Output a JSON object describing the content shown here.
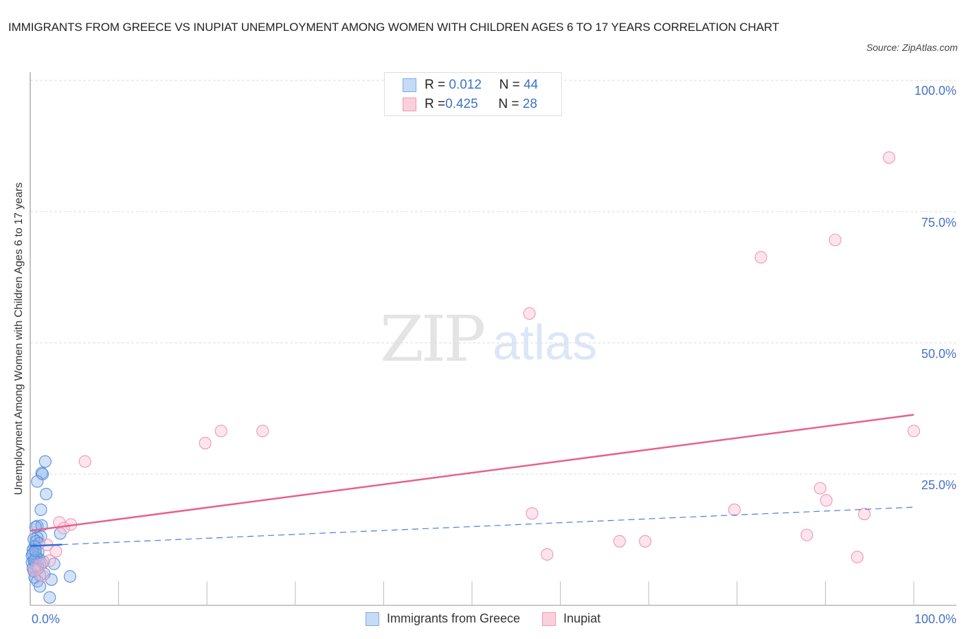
{
  "header": {
    "title": "IMMIGRANTS FROM GREECE VS INUPIAT UNEMPLOYMENT AMONG WOMEN WITH CHILDREN AGES 6 TO 17 YEARS CORRELATION CHART",
    "source": "Source: ZipAtlas.com"
  },
  "watermark": {
    "zip": "ZIP",
    "atlas": "atlas"
  },
  "legend_top": {
    "rows": [
      {
        "r_label": "R = ",
        "r_value": "0.012",
        "n_label": "N = ",
        "n_value": "44",
        "color": "#a8c8f0"
      },
      {
        "r_label": "R = ",
        "r_value": "0.425",
        "n_label": "N = ",
        "n_value": "28",
        "color": "#f8bcd0"
      }
    ]
  },
  "axes": {
    "ylabel": "Unemployment Among Women with Children Ages 6 to 17 years",
    "yticks": [
      "100.0%",
      "75.0%",
      "50.0%",
      "25.0%"
    ],
    "xticks": {
      "left": "0.0%",
      "right": "100.0%"
    }
  },
  "bottom_legend": {
    "items": [
      {
        "label": "Immigrants from Greece",
        "color": "#a8c8f0"
      },
      {
        "label": "Inupiat",
        "color": "#f8bcd0"
      }
    ]
  },
  "chart_data": {
    "type": "scatter",
    "title": "Immigrants from Greece vs Inupiat Unemployment Among Women with Children Ages 6 to 17 years Correlation Chart",
    "xlabel": "",
    "ylabel": "Unemployment Among Women with Children Ages 6 to 17 years",
    "xlim": [
      0,
      100
    ],
    "ylim": [
      0,
      100
    ],
    "x_tick_labels": [
      "0.0%",
      "100.0%"
    ],
    "y_tick_labels": [
      "25.0%",
      "50.0%",
      "75.0%",
      "100.0%"
    ],
    "grid": "horizontal dashed",
    "legend_position": "top-center and bottom",
    "series": [
      {
        "name": "Immigrants from Greece",
        "color": "#6fa0e0",
        "R": 0.012,
        "N": 44,
        "trend": {
          "x0": 0,
          "y0": 11.3,
          "x1": 100,
          "y1": 18.7,
          "style": "solid to ~4%, dashed after"
        },
        "points": [
          [
            1.7,
            27.4
          ],
          [
            1.3,
            25.2
          ],
          [
            1.4,
            25.0
          ],
          [
            0.8,
            23.6
          ],
          [
            1.8,
            21.2
          ],
          [
            1.2,
            18.2
          ],
          [
            0.8,
            15.1
          ],
          [
            1.3,
            15.2
          ],
          [
            0.6,
            14.9
          ],
          [
            3.4,
            13.7
          ],
          [
            1.2,
            13.1
          ],
          [
            0.8,
            12.9
          ],
          [
            0.4,
            12.6
          ],
          [
            0.7,
            12.2
          ],
          [
            1.0,
            11.8
          ],
          [
            0.5,
            11.2
          ],
          [
            0.3,
            10.6
          ],
          [
            0.9,
            10.2
          ],
          [
            0.6,
            9.8
          ],
          [
            0.2,
            9.5
          ],
          [
            0.7,
            9.1
          ],
          [
            1.0,
            8.8
          ],
          [
            0.4,
            8.5
          ],
          [
            0.2,
            8.2
          ],
          [
            1.3,
            8.0
          ],
          [
            2.7,
            7.9
          ],
          [
            0.6,
            7.7
          ],
          [
            0.9,
            7.4
          ],
          [
            0.3,
            7.1
          ],
          [
            0.7,
            6.8
          ],
          [
            0.4,
            6.5
          ],
          [
            1.6,
            6.0
          ],
          [
            1.1,
            5.7
          ],
          [
            0.5,
            5.3
          ],
          [
            4.5,
            5.5
          ],
          [
            2.4,
            4.9
          ],
          [
            0.8,
            4.6
          ],
          [
            1.1,
            3.6
          ],
          [
            2.2,
            1.5
          ],
          [
            0.3,
            9.9
          ],
          [
            0.5,
            8.6
          ],
          [
            0.9,
            7.0
          ],
          [
            0.6,
            10.4
          ],
          [
            1.5,
            8.3
          ]
        ]
      },
      {
        "name": "Inupiat",
        "color": "#f4a0bc",
        "R": 0.425,
        "N": 28,
        "trend": {
          "x0": 0,
          "y0": 14.2,
          "x1": 100,
          "y1": 36.3,
          "style": "solid"
        },
        "points": [
          [
            97.2,
            85.3
          ],
          [
            91.1,
            69.6
          ],
          [
            82.7,
            66.3
          ],
          [
            56.5,
            55.6
          ],
          [
            19.8,
            30.9
          ],
          [
            21.6,
            33.2
          ],
          [
            26.3,
            33.2
          ],
          [
            6.2,
            27.4
          ],
          [
            100.0,
            33.2
          ],
          [
            56.8,
            17.5
          ],
          [
            58.5,
            9.7
          ],
          [
            66.7,
            12.2
          ],
          [
            69.6,
            12.2
          ],
          [
            79.7,
            18.2
          ],
          [
            89.4,
            22.3
          ],
          [
            90.1,
            20.0
          ],
          [
            94.4,
            17.4
          ],
          [
            87.9,
            13.4
          ],
          [
            93.6,
            9.2
          ],
          [
            3.3,
            15.8
          ],
          [
            4.6,
            15.4
          ],
          [
            3.8,
            14.7
          ],
          [
            2.9,
            10.3
          ],
          [
            1.9,
            11.5
          ],
          [
            2.2,
            8.5
          ],
          [
            1.1,
            7.7
          ],
          [
            0.5,
            6.7
          ],
          [
            1.4,
            5.6
          ]
        ]
      }
    ]
  }
}
